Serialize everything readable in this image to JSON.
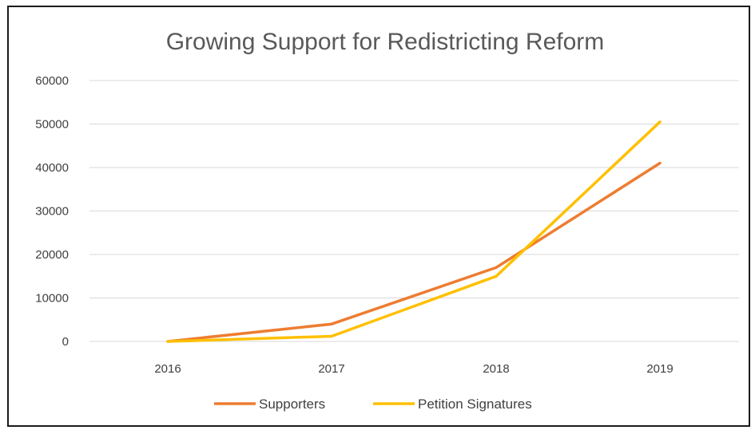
{
  "chart_data": {
    "type": "line",
    "title": "Growing Support for Redistricting Reform",
    "xlabel": "",
    "ylabel": "",
    "categories": [
      "2016",
      "2017",
      "2018",
      "2019"
    ],
    "ylim": [
      0,
      60000
    ],
    "yticks": [
      0,
      10000,
      20000,
      30000,
      40000,
      50000,
      60000
    ],
    "grid": true,
    "legend": "bottom",
    "series": [
      {
        "name": "Supporters",
        "color": "#ed7d31",
        "values": [
          0,
          4000,
          17000,
          41000
        ]
      },
      {
        "name": "Petition Signatures",
        "color": "#ffc000",
        "values": [
          0,
          1200,
          15000,
          50500
        ]
      }
    ]
  }
}
